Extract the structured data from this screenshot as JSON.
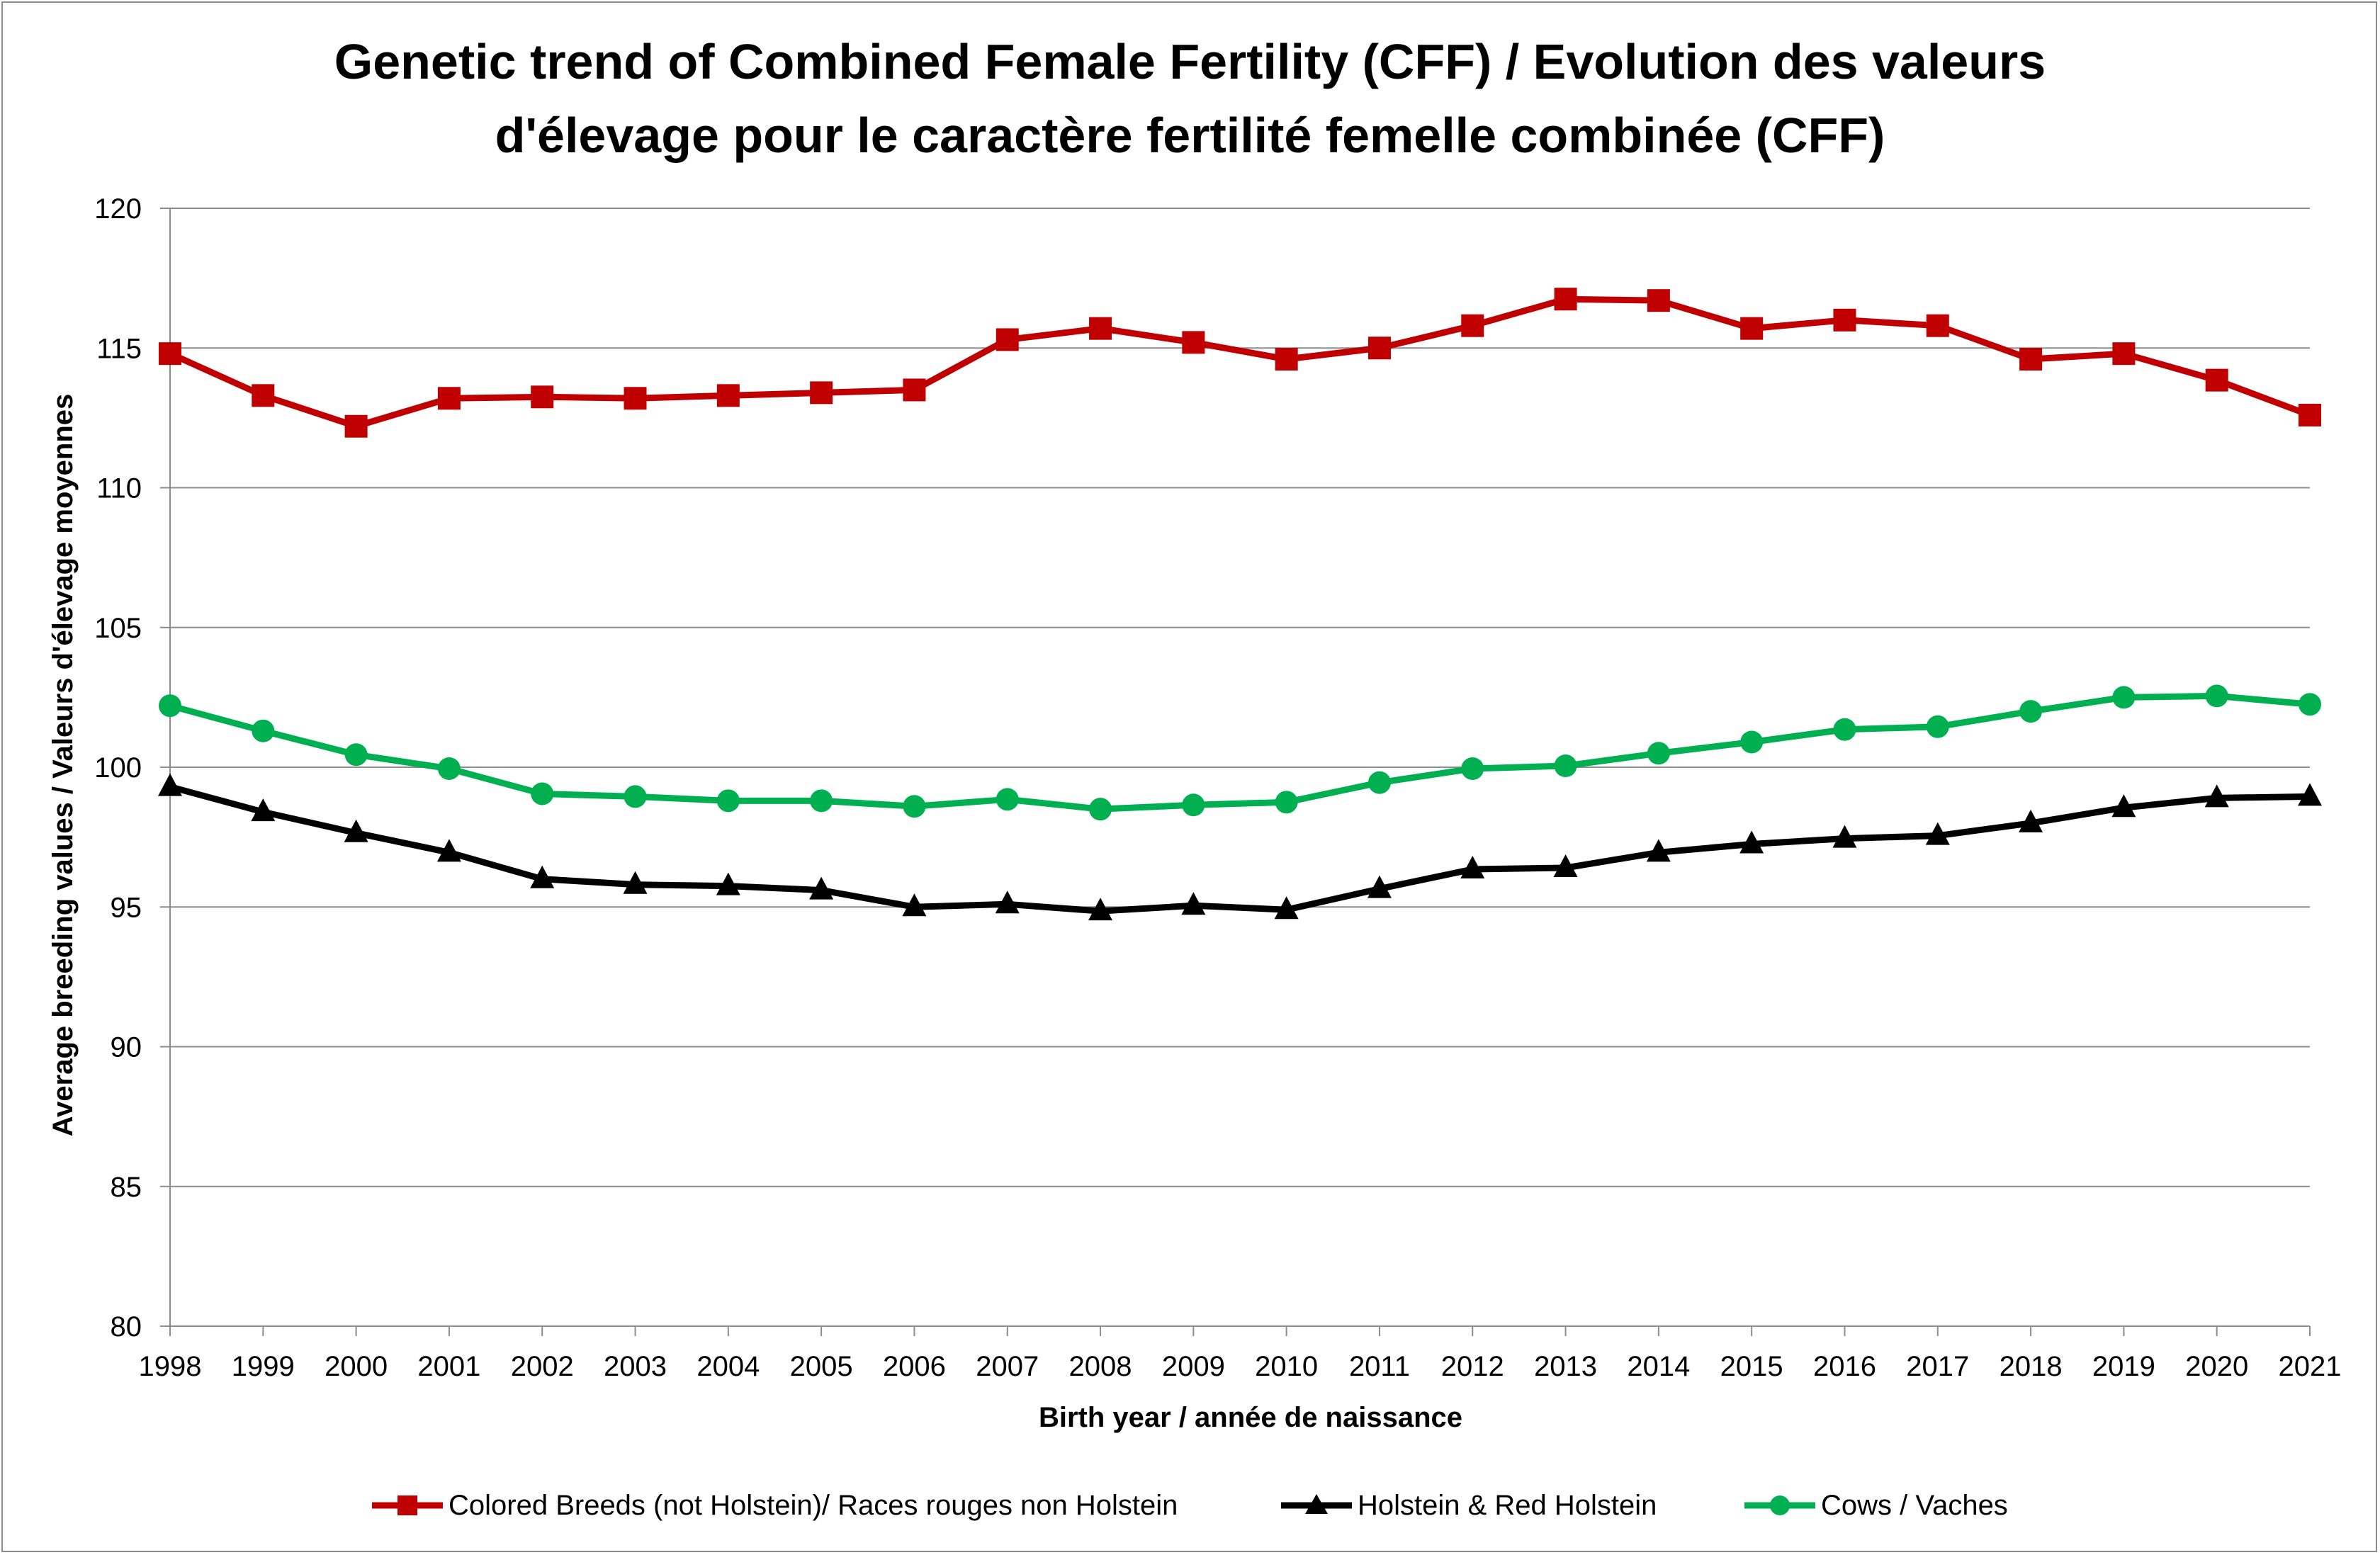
{
  "chart_data": {
    "type": "line",
    "title_line1": "Genetic trend of Combined Female Fertility (CFF) / Evolution des valeurs",
    "title_line2": "d'élevage pour le caractère fertilité femelle combinée (CFF)",
    "xlabel": "Birth year / année de naissance",
    "ylabel": "Average breeding values / Valeurs d'élevage moyennes",
    "ylim": [
      80,
      120
    ],
    "yticks": [
      80,
      85,
      90,
      95,
      100,
      105,
      110,
      115,
      120
    ],
    "grid": true,
    "legend_position": "bottom",
    "categories": [
      "1998",
      "1999",
      "2000",
      "2001",
      "2002",
      "2003",
      "2004",
      "2005",
      "2006",
      "2007",
      "2008",
      "2009",
      "2010",
      "2011",
      "2012",
      "2013",
      "2014",
      "2015",
      "2016",
      "2017",
      "2018",
      "2019",
      "2020",
      "2021"
    ],
    "series": [
      {
        "name": "Colored Breeds (not Holstein)/ Races rouges non Holstein",
        "color": "#c00000",
        "marker": "square",
        "values": [
          114.8,
          113.3,
          112.2,
          113.2,
          113.25,
          113.2,
          113.3,
          113.4,
          113.5,
          115.3,
          115.7,
          115.2,
          114.6,
          115.0,
          115.8,
          116.75,
          116.7,
          115.7,
          116.0,
          115.8,
          114.6,
          114.8,
          113.85,
          112.6
        ]
      },
      {
        "name": "Holstein & Red Holstein",
        "color": "#000000",
        "marker": "triangle",
        "values": [
          99.3,
          98.4,
          97.65,
          96.95,
          96.0,
          95.8,
          95.75,
          95.6,
          95.0,
          95.1,
          94.85,
          95.05,
          94.9,
          95.65,
          96.35,
          96.4,
          96.95,
          97.25,
          97.45,
          97.55,
          98.0,
          98.55,
          98.9,
          98.95
        ]
      },
      {
        "name": "Cows / Vaches",
        "color": "#00b050",
        "marker": "circle",
        "values": [
          102.2,
          101.3,
          100.45,
          99.95,
          99.05,
          98.95,
          98.8,
          98.8,
          98.6,
          98.85,
          98.5,
          98.65,
          98.75,
          99.45,
          99.95,
          100.05,
          100.5,
          100.9,
          101.35,
          101.45,
          102.0,
          102.5,
          102.55,
          102.25
        ]
      }
    ]
  }
}
